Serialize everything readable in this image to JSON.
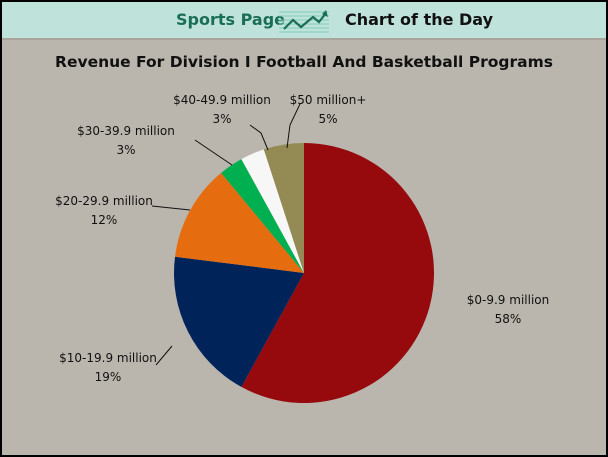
{
  "header": {
    "brand": "Sports Page",
    "subtitle": "Chart of the Day",
    "icon": "trend-chart-icon"
  },
  "chart_data": {
    "type": "pie",
    "title": "Revenue For Division I Football And Basketball Programs",
    "categories": [
      "$0-9.9 million",
      "$10-19.9 million",
      "$20-29.9 million",
      "$30-39.9 million",
      "$40-49.9 million",
      "$50 million+"
    ],
    "values": [
      58,
      19,
      12,
      3,
      3,
      5
    ],
    "value_labels": [
      "58%",
      "19%",
      "12%",
      "3%",
      "3%",
      "5%"
    ],
    "colors": [
      "#960a0e",
      "#00235a",
      "#e56d10",
      "#00b050",
      "#f7f7f7",
      "#948a54"
    ],
    "start": "12 o'clock",
    "direction": "clockwise"
  }
}
